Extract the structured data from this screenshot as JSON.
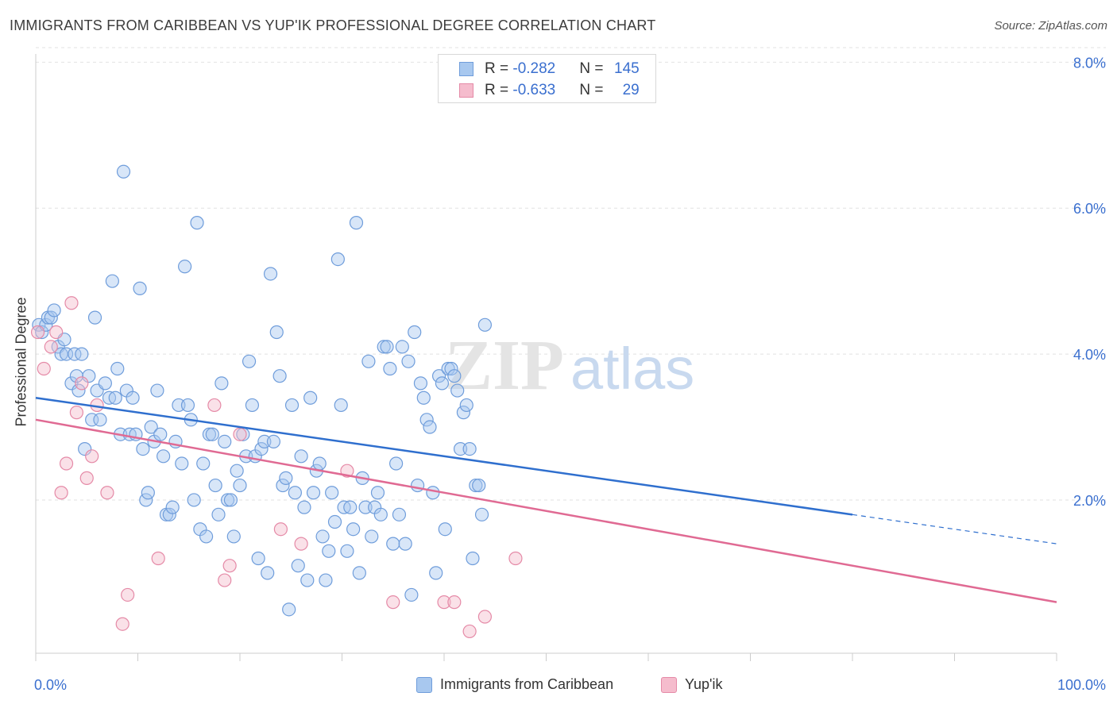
{
  "title": "IMMIGRANTS FROM CARIBBEAN VS YUP'IK PROFESSIONAL DEGREE CORRELATION CHART",
  "source": "Source: ZipAtlas.com",
  "watermark": {
    "zip": "ZIP",
    "atlas": "atlas"
  },
  "colors": {
    "blue_fill": "#a8c8ef",
    "blue_stroke": "#6f9ddb",
    "blue_line": "#2f6fce",
    "pink_fill": "#f5bccd",
    "pink_stroke": "#e58aa7",
    "pink_line": "#e06a93",
    "axis_text": "#3a6fcf",
    "grid": "#e2e2e2"
  },
  "legend_top": {
    "rows": [
      {
        "r_label": "R = ",
        "r_value": "-0.282",
        "n_label": "N = ",
        "n_value": "145"
      },
      {
        "r_label": "R = ",
        "r_value": "-0.633",
        "n_label": "N = ",
        "n_value": "29"
      }
    ]
  },
  "legend_bottom": [
    {
      "label": "Immigrants from Caribbean"
    },
    {
      "label": "Yup'ik"
    }
  ],
  "chart_data": {
    "type": "scatter",
    "title": "IMMIGRANTS FROM CARIBBEAN VS YUP'IK PROFESSIONAL DEGREE CORRELATION CHART",
    "xlabel": "",
    "ylabel": "Professional Degree",
    "xlim": [
      0,
      100
    ],
    "ylim": [
      -0.1,
      8.2
    ],
    "x_ticks_labels": [
      "0.0%",
      "100.0%"
    ],
    "y_ticks": [
      2,
      4,
      6,
      8
    ],
    "y_tick_labels": [
      "2.0%",
      "4.0%",
      "6.0%",
      "8.0%"
    ],
    "grid": true,
    "legend_placement": "top-center",
    "series": [
      {
        "name": "Immigrants from Caribbean",
        "R": -0.282,
        "N": 145,
        "trend": {
          "x0": 0,
          "y0": 3.4,
          "x1": 80,
          "y1": 1.8,
          "dashed_to_x": 100,
          "dashed_to_y": 1.4
        },
        "points": [
          [
            0.3,
            4.4
          ],
          [
            0.6,
            4.3
          ],
          [
            1.0,
            4.4
          ],
          [
            1.2,
            4.5
          ],
          [
            1.5,
            4.5
          ],
          [
            1.8,
            4.6
          ],
          [
            2.2,
            4.1
          ],
          [
            2.5,
            4.0
          ],
          [
            2.8,
            4.2
          ],
          [
            3.0,
            4.0
          ],
          [
            3.5,
            3.6
          ],
          [
            3.8,
            4.0
          ],
          [
            4.0,
            3.7
          ],
          [
            4.2,
            3.5
          ],
          [
            4.5,
            4.0
          ],
          [
            4.8,
            2.7
          ],
          [
            5.2,
            3.7
          ],
          [
            5.5,
            3.1
          ],
          [
            5.8,
            4.5
          ],
          [
            6.0,
            3.5
          ],
          [
            6.3,
            3.1
          ],
          [
            6.8,
            3.6
          ],
          [
            7.2,
            3.4
          ],
          [
            7.5,
            5.0
          ],
          [
            7.8,
            3.4
          ],
          [
            8.0,
            3.8
          ],
          [
            8.3,
            2.9
          ],
          [
            8.6,
            6.5
          ],
          [
            8.9,
            3.5
          ],
          [
            9.2,
            2.9
          ],
          [
            9.5,
            3.4
          ],
          [
            9.8,
            2.9
          ],
          [
            10.2,
            4.9
          ],
          [
            10.5,
            2.7
          ],
          [
            10.8,
            2.0
          ],
          [
            11.0,
            2.1
          ],
          [
            11.3,
            3.0
          ],
          [
            11.6,
            2.8
          ],
          [
            11.9,
            3.5
          ],
          [
            12.2,
            2.9
          ],
          [
            12.5,
            2.6
          ],
          [
            12.8,
            1.8
          ],
          [
            13.1,
            1.8
          ],
          [
            13.4,
            1.9
          ],
          [
            13.7,
            2.8
          ],
          [
            14.0,
            3.3
          ],
          [
            14.3,
            2.5
          ],
          [
            14.6,
            5.2
          ],
          [
            14.9,
            3.3
          ],
          [
            15.2,
            3.1
          ],
          [
            15.5,
            2.0
          ],
          [
            15.8,
            5.8
          ],
          [
            16.1,
            1.6
          ],
          [
            16.4,
            2.5
          ],
          [
            16.7,
            1.5
          ],
          [
            17.0,
            2.9
          ],
          [
            17.3,
            2.9
          ],
          [
            17.6,
            2.2
          ],
          [
            17.9,
            1.8
          ],
          [
            18.2,
            3.6
          ],
          [
            18.5,
            2.8
          ],
          [
            18.8,
            2.0
          ],
          [
            19.1,
            2.0
          ],
          [
            19.4,
            1.5
          ],
          [
            19.7,
            2.4
          ],
          [
            20.0,
            2.2
          ],
          [
            20.3,
            2.9
          ],
          [
            20.6,
            2.6
          ],
          [
            20.9,
            3.9
          ],
          [
            21.2,
            3.3
          ],
          [
            21.5,
            2.6
          ],
          [
            21.8,
            1.2
          ],
          [
            22.1,
            2.7
          ],
          [
            22.4,
            2.8
          ],
          [
            22.7,
            1.0
          ],
          [
            23.0,
            5.1
          ],
          [
            23.3,
            2.8
          ],
          [
            23.6,
            4.3
          ],
          [
            23.9,
            3.7
          ],
          [
            24.2,
            2.2
          ],
          [
            24.5,
            2.3
          ],
          [
            24.8,
            0.5
          ],
          [
            25.1,
            3.3
          ],
          [
            25.4,
            2.1
          ],
          [
            25.7,
            1.1
          ],
          [
            26.0,
            2.6
          ],
          [
            26.3,
            1.9
          ],
          [
            26.6,
            0.9
          ],
          [
            26.9,
            3.4
          ],
          [
            27.2,
            2.1
          ],
          [
            27.5,
            2.4
          ],
          [
            27.8,
            2.5
          ],
          [
            28.1,
            1.5
          ],
          [
            28.4,
            0.9
          ],
          [
            28.7,
            1.3
          ],
          [
            29.0,
            2.1
          ],
          [
            29.3,
            1.7
          ],
          [
            29.6,
            5.3
          ],
          [
            29.9,
            3.3
          ],
          [
            30.2,
            1.9
          ],
          [
            30.5,
            1.3
          ],
          [
            30.8,
            1.9
          ],
          [
            31.1,
            1.6
          ],
          [
            31.4,
            5.8
          ],
          [
            31.7,
            1.0
          ],
          [
            32.0,
            2.3
          ],
          [
            32.3,
            1.9
          ],
          [
            32.6,
            3.9
          ],
          [
            32.9,
            1.5
          ],
          [
            33.2,
            1.9
          ],
          [
            33.5,
            2.1
          ],
          [
            33.8,
            1.8
          ],
          [
            34.1,
            4.1
          ],
          [
            34.4,
            4.1
          ],
          [
            34.7,
            3.8
          ],
          [
            35.0,
            1.4
          ],
          [
            35.3,
            2.5
          ],
          [
            35.6,
            1.8
          ],
          [
            35.9,
            4.1
          ],
          [
            36.2,
            1.4
          ],
          [
            36.5,
            3.9
          ],
          [
            36.8,
            0.7
          ],
          [
            37.1,
            4.3
          ],
          [
            37.4,
            2.2
          ],
          [
            37.7,
            3.6
          ],
          [
            38.0,
            3.4
          ],
          [
            38.3,
            3.1
          ],
          [
            38.6,
            3.0
          ],
          [
            38.9,
            2.1
          ],
          [
            39.2,
            1.0
          ],
          [
            39.5,
            3.7
          ],
          [
            39.8,
            3.6
          ],
          [
            40.1,
            1.6
          ],
          [
            40.4,
            3.8
          ],
          [
            40.7,
            3.8
          ],
          [
            41.0,
            3.7
          ],
          [
            41.3,
            3.5
          ],
          [
            41.6,
            2.7
          ],
          [
            41.9,
            3.2
          ],
          [
            42.2,
            3.3
          ],
          [
            42.5,
            2.7
          ],
          [
            42.8,
            1.2
          ],
          [
            43.1,
            2.2
          ],
          [
            43.4,
            2.2
          ],
          [
            43.7,
            1.8
          ],
          [
            44.0,
            4.4
          ]
        ]
      },
      {
        "name": "Yup'ik",
        "R": -0.633,
        "N": 29,
        "trend": {
          "x0": 0,
          "y0": 3.1,
          "x1": 100,
          "y1": 0.6
        },
        "points": [
          [
            0.2,
            4.3
          ],
          [
            0.8,
            3.8
          ],
          [
            1.5,
            4.1
          ],
          [
            2.0,
            4.3
          ],
          [
            2.5,
            2.1
          ],
          [
            3.0,
            2.5
          ],
          [
            3.5,
            4.7
          ],
          [
            4.0,
            3.2
          ],
          [
            4.5,
            3.6
          ],
          [
            5.0,
            2.3
          ],
          [
            5.5,
            2.6
          ],
          [
            6.0,
            3.3
          ],
          [
            7.0,
            2.1
          ],
          [
            8.5,
            0.3
          ],
          [
            9.0,
            0.7
          ],
          [
            12.0,
            1.2
          ],
          [
            17.5,
            3.3
          ],
          [
            18.5,
            0.9
          ],
          [
            19.0,
            1.1
          ],
          [
            20.0,
            2.9
          ],
          [
            24.0,
            1.6
          ],
          [
            26.0,
            1.4
          ],
          [
            30.5,
            2.4
          ],
          [
            35.0,
            0.6
          ],
          [
            40.0,
            0.6
          ],
          [
            42.5,
            0.2
          ],
          [
            44.0,
            0.4
          ],
          [
            47.0,
            1.2
          ],
          [
            41.0,
            0.6
          ]
        ]
      }
    ]
  }
}
